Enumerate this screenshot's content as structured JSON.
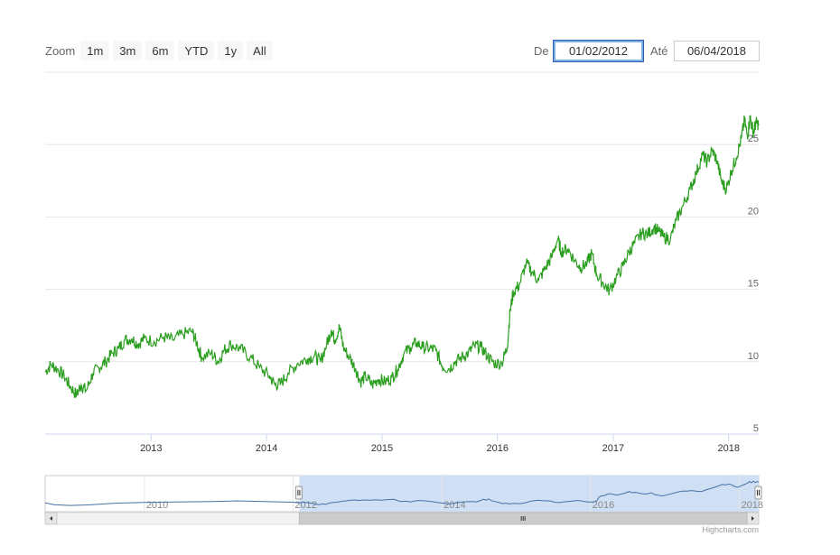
{
  "zoom": {
    "label": "Zoom",
    "buttons": [
      "1m",
      "3m",
      "6m",
      "YTD",
      "1y",
      "All"
    ]
  },
  "range": {
    "from_label": "De",
    "from_value": "01/02/2012",
    "to_label": "Até",
    "to_value": "06/04/2018"
  },
  "credits": "Highcharts.com",
  "colors": {
    "series": "#2b9e1f",
    "navigator_series": "#4572a7",
    "navigator_mask": "#cfe0f4",
    "grid": "#e6e6e6"
  },
  "chart_data": {
    "type": "line",
    "title": "",
    "xlabel": "",
    "ylabel": "",
    "x_ticks": [
      "2013",
      "2014",
      "2015",
      "2016",
      "2017",
      "2018"
    ],
    "y_ticks": [
      5,
      10,
      15,
      20,
      25
    ],
    "xlim": [
      "2012-02-01",
      "2018-04-06"
    ],
    "ylim": [
      5,
      30
    ],
    "grid": true,
    "series": [
      {
        "values": [
          [
            "2012-02-01",
            9.3
          ],
          [
            "2012-02-20",
            9.8
          ],
          [
            "2012-03-10",
            9.5
          ],
          [
            "2012-04-01",
            9.0
          ],
          [
            "2012-04-20",
            8.3
          ],
          [
            "2012-05-10",
            7.7
          ],
          [
            "2012-05-25",
            8.4
          ],
          [
            "2012-06-10",
            8.0
          ],
          [
            "2012-07-01",
            9.2
          ],
          [
            "2012-07-20",
            9.6
          ],
          [
            "2012-08-10",
            10.0
          ],
          [
            "2012-09-01",
            10.6
          ],
          [
            "2012-09-20",
            10.9
          ],
          [
            "2012-10-10",
            11.5
          ],
          [
            "2012-11-01",
            11.6
          ],
          [
            "2012-11-20",
            11.2
          ],
          [
            "2012-12-10",
            11.6
          ],
          [
            "2013-01-10",
            11.4
          ],
          [
            "2013-02-10",
            11.7
          ],
          [
            "2013-03-10",
            11.5
          ],
          [
            "2013-04-10",
            11.9
          ],
          [
            "2013-05-10",
            12.1
          ],
          [
            "2013-05-25",
            11.3
          ],
          [
            "2013-06-10",
            10.3
          ],
          [
            "2013-07-10",
            10.6
          ],
          [
            "2013-08-01",
            10.0
          ],
          [
            "2013-08-20",
            10.8
          ],
          [
            "2013-09-10",
            11.2
          ],
          [
            "2013-10-10",
            10.9
          ],
          [
            "2013-11-10",
            10.3
          ],
          [
            "2013-12-10",
            9.6
          ],
          [
            "2014-01-10",
            9.0
          ],
          [
            "2014-01-28",
            8.4
          ],
          [
            "2014-02-15",
            8.5
          ],
          [
            "2014-03-10",
            9.2
          ],
          [
            "2014-04-10",
            9.9
          ],
          [
            "2014-05-10",
            10.2
          ],
          [
            "2014-06-01",
            10.4
          ],
          [
            "2014-06-20",
            10.0
          ],
          [
            "2014-07-10",
            11.2
          ],
          [
            "2014-07-25",
            12.2
          ],
          [
            "2014-08-05",
            11.5
          ],
          [
            "2014-08-20",
            12.4
          ],
          [
            "2014-09-01",
            11.0
          ],
          [
            "2014-09-20",
            10.3
          ],
          [
            "2014-10-10",
            9.5
          ],
          [
            "2014-10-25",
            8.6
          ],
          [
            "2014-11-10",
            9.0
          ],
          [
            "2014-12-01",
            8.4
          ],
          [
            "2014-12-20",
            8.8
          ],
          [
            "2015-01-10",
            8.6
          ],
          [
            "2015-02-01",
            8.9
          ],
          [
            "2015-02-20",
            9.5
          ],
          [
            "2015-03-10",
            10.5
          ],
          [
            "2015-04-01",
            11.0
          ],
          [
            "2015-04-20",
            11.3
          ],
          [
            "2015-05-10",
            11.0
          ],
          [
            "2015-06-01",
            10.9
          ],
          [
            "2015-06-20",
            10.8
          ],
          [
            "2015-07-10",
            9.7
          ],
          [
            "2015-08-01",
            9.5
          ],
          [
            "2015-08-20",
            10.0
          ],
          [
            "2015-09-10",
            10.3
          ],
          [
            "2015-10-01",
            10.6
          ],
          [
            "2015-10-20",
            11.1
          ],
          [
            "2015-11-10",
            11.0
          ],
          [
            "2015-12-01",
            10.4
          ],
          [
            "2015-12-20",
            9.9
          ],
          [
            "2016-01-15",
            9.9
          ],
          [
            "2016-02-01",
            11.0
          ],
          [
            "2016-02-10",
            13.5
          ],
          [
            "2016-02-20",
            14.8
          ],
          [
            "2016-03-10",
            15.3
          ],
          [
            "2016-04-01",
            16.8
          ],
          [
            "2016-04-20",
            16.2
          ],
          [
            "2016-05-10",
            15.6
          ],
          [
            "2016-06-01",
            16.5
          ],
          [
            "2016-06-20",
            17.2
          ],
          [
            "2016-07-10",
            18.5
          ],
          [
            "2016-07-20",
            17.6
          ],
          [
            "2016-08-10",
            17.8
          ],
          [
            "2016-09-01",
            17.0
          ],
          [
            "2016-09-20",
            16.5
          ],
          [
            "2016-10-10",
            16.8
          ],
          [
            "2016-10-25",
            17.5
          ],
          [
            "2016-11-10",
            16.0
          ],
          [
            "2016-12-01",
            15.4
          ],
          [
            "2016-12-20",
            14.9
          ],
          [
            "2017-01-10",
            15.8
          ],
          [
            "2017-02-01",
            16.6
          ],
          [
            "2017-02-20",
            17.6
          ],
          [
            "2017-03-10",
            18.2
          ],
          [
            "2017-04-01",
            18.9
          ],
          [
            "2017-04-20",
            18.8
          ],
          [
            "2017-05-10",
            19.3
          ],
          [
            "2017-05-25",
            19.0
          ],
          [
            "2017-06-10",
            18.6
          ],
          [
            "2017-07-01",
            18.5
          ],
          [
            "2017-07-20",
            19.8
          ],
          [
            "2017-08-10",
            20.8
          ],
          [
            "2017-09-01",
            21.9
          ],
          [
            "2017-09-20",
            23.0
          ],
          [
            "2017-10-10",
            24.3
          ],
          [
            "2017-10-25",
            23.8
          ],
          [
            "2017-11-10",
            24.6
          ],
          [
            "2017-11-25",
            23.9
          ],
          [
            "2017-12-10",
            22.4
          ],
          [
            "2017-12-25",
            21.9
          ],
          [
            "2018-01-10",
            23.2
          ],
          [
            "2018-01-25",
            24.1
          ],
          [
            "2018-02-10",
            25.4
          ],
          [
            "2018-02-20",
            26.7
          ],
          [
            "2018-03-01",
            25.6
          ],
          [
            "2018-03-10",
            26.9
          ],
          [
            "2018-03-20",
            25.8
          ],
          [
            "2018-03-28",
            26.5
          ],
          [
            "2018-04-06",
            26.4
          ]
        ]
      }
    ],
    "navigator": {
      "x_ticks": [
        "2010",
        "2012",
        "2014",
        "2016",
        "2018"
      ],
      "xlim": [
        "2008-09-01",
        "2018-04-06"
      ],
      "selected": [
        "2012-02-01",
        "2018-04-06"
      ],
      "values": [
        [
          "2008-09-01",
          9.2
        ],
        [
          "2008-10-15",
          7.8
        ],
        [
          "2009-01-01",
          7.1
        ],
        [
          "2009-04-01",
          7.6
        ],
        [
          "2009-08-01",
          8.9
        ],
        [
          "2010-01-01",
          9.6
        ],
        [
          "2010-06-01",
          9.9
        ],
        [
          "2010-12-01",
          10.4
        ],
        [
          "2011-04-01",
          10.9
        ],
        [
          "2011-09-01",
          10.2
        ],
        [
          "2012-01-01",
          9.8
        ]
      ]
    }
  }
}
